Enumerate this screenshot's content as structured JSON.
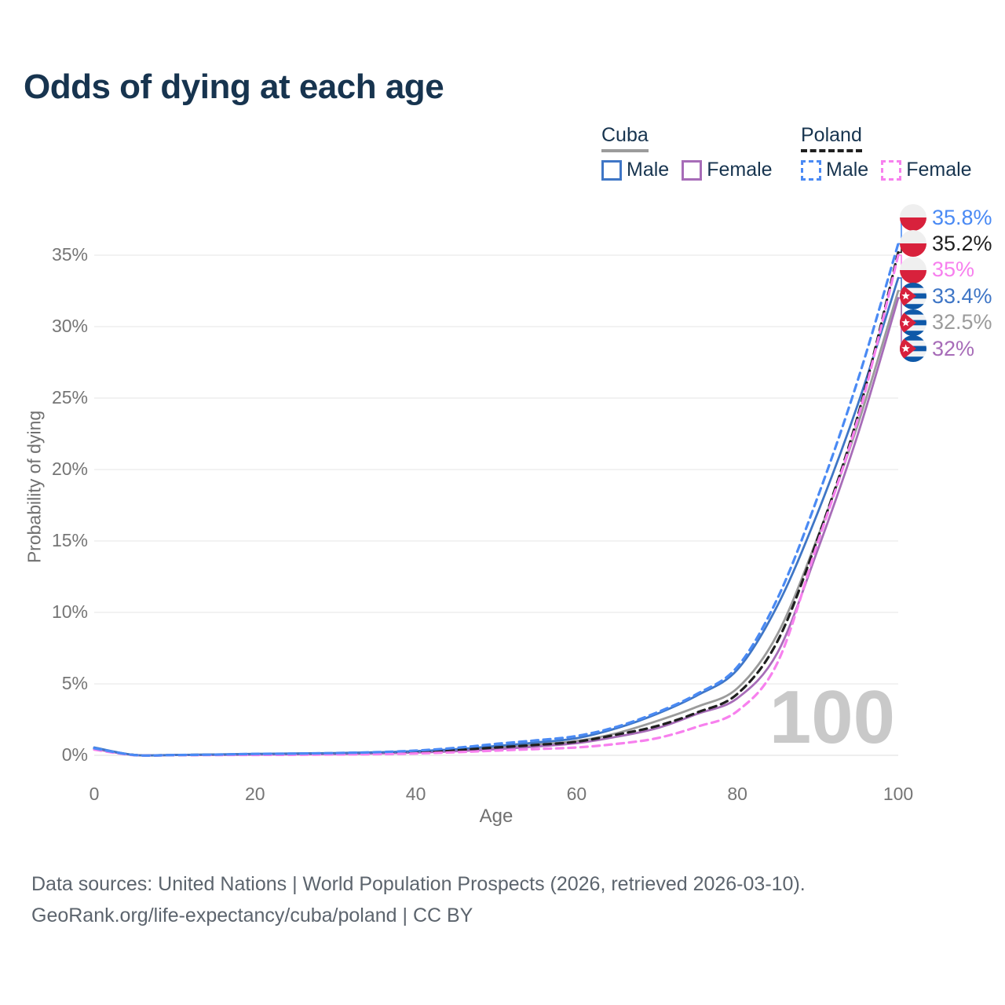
{
  "title": "Odds of dying at each age",
  "watermark": "100",
  "legend": {
    "groups": [
      {
        "country": "Cuba",
        "style": "solid",
        "underline_color": "#9b9b9b",
        "items": [
          {
            "label": "Male",
            "color": "#3f76c6",
            "dashed": false
          },
          {
            "label": "Female",
            "color": "#a76cb8",
            "dashed": false
          }
        ]
      },
      {
        "country": "Poland",
        "style": "dashed",
        "underline_color": "#1f1f1f",
        "items": [
          {
            "label": "Male",
            "color": "#4a8af4",
            "dashed": true
          },
          {
            "label": "Female",
            "color": "#f780ee",
            "dashed": true
          }
        ]
      }
    ]
  },
  "axes": {
    "y_title": "Probability of dying",
    "x_title": "Age",
    "y_ticks": [
      "0%",
      "5%",
      "10%",
      "15%",
      "20%",
      "25%",
      "30%",
      "35%"
    ],
    "x_ticks": [
      "0",
      "20",
      "40",
      "60",
      "80",
      "100"
    ]
  },
  "chart_data": {
    "type": "line",
    "title": "Odds of dying at each age",
    "xlabel": "Age",
    "ylabel": "Probability of dying",
    "xlim": [
      0,
      100
    ],
    "ylim": [
      0,
      38
    ],
    "grid": "horizontal",
    "legend_position": "top-right",
    "x": [
      0,
      5,
      10,
      15,
      20,
      25,
      30,
      35,
      40,
      45,
      50,
      55,
      60,
      65,
      70,
      75,
      80,
      85,
      90,
      95,
      100
    ],
    "series": [
      {
        "name": "Poland Male",
        "country": "Poland",
        "sex": "Male",
        "color": "#4a8af4",
        "dashed": true,
        "values": [
          0.5,
          0.02,
          0.02,
          0.05,
          0.1,
          0.12,
          0.16,
          0.22,
          0.33,
          0.52,
          0.8,
          1.05,
          1.35,
          2.0,
          3.0,
          4.3,
          6.2,
          11.0,
          18.1,
          26.3,
          35.8
        ],
        "end_label": "35.8%",
        "flag": "poland"
      },
      {
        "name": "Poland Both sexes",
        "country": "Poland",
        "sex": "Both",
        "color": "#1f1f1f",
        "dashed": true,
        "values": [
          0.45,
          0.02,
          0.02,
          0.04,
          0.07,
          0.08,
          0.11,
          0.15,
          0.22,
          0.36,
          0.55,
          0.73,
          0.95,
          1.45,
          2.05,
          3.0,
          4.3,
          8.0,
          15.2,
          23.8,
          35.2
        ],
        "end_label": "35.2%",
        "flag": "poland"
      },
      {
        "name": "Poland Female",
        "country": "Poland",
        "sex": "Female",
        "color": "#f780ee",
        "dashed": true,
        "values": [
          0.4,
          0.01,
          0.01,
          0.02,
          0.03,
          0.04,
          0.06,
          0.08,
          0.13,
          0.22,
          0.33,
          0.44,
          0.55,
          0.8,
          1.2,
          2.0,
          3.1,
          6.5,
          14.9,
          23.6,
          35.0
        ],
        "end_label": "35%",
        "flag": "poland"
      },
      {
        "name": "Cuba Male",
        "country": "Cuba",
        "sex": "Male",
        "color": "#3f76c6",
        "dashed": false,
        "values": [
          0.55,
          0.03,
          0.03,
          0.06,
          0.1,
          0.13,
          0.16,
          0.21,
          0.29,
          0.43,
          0.65,
          0.9,
          1.2,
          1.9,
          2.9,
          4.2,
          6.0,
          10.5,
          17.0,
          24.6,
          33.4
        ],
        "end_label": "33.4%",
        "flag": "cuba"
      },
      {
        "name": "Cuba Both sexes",
        "country": "Cuba",
        "sex": "Both",
        "color": "#9b9b9b",
        "dashed": false,
        "values": [
          0.5,
          0.02,
          0.02,
          0.05,
          0.08,
          0.1,
          0.13,
          0.17,
          0.24,
          0.36,
          0.54,
          0.76,
          1.0,
          1.55,
          2.4,
          3.4,
          4.7,
          8.5,
          15.3,
          23.2,
          32.5
        ],
        "end_label": "32.5%",
        "flag": "cuba"
      },
      {
        "name": "Cuba Female",
        "country": "Cuba",
        "sex": "Female",
        "color": "#a76cb8",
        "dashed": false,
        "values": [
          0.45,
          0.02,
          0.02,
          0.03,
          0.05,
          0.07,
          0.09,
          0.13,
          0.19,
          0.29,
          0.43,
          0.62,
          0.85,
          1.3,
          1.9,
          2.9,
          4.0,
          7.2,
          14.4,
          22.5,
          32.0
        ],
        "end_label": "32%",
        "flag": "cuba"
      }
    ],
    "flag_colors": {
      "poland_white": "#efefef",
      "poland_red": "#d8213c",
      "cuba_blue": "#0e58a8",
      "cuba_white": "#f0f2f4",
      "cuba_red": "#d8203c"
    },
    "gridline_color": "#ebebeb"
  },
  "footer": {
    "line1": "Data sources: United Nations | World Population Prospects (2026, retrieved 2026-03-10).",
    "line2": "GeoRank.org/life-expectancy/cuba/poland | CC BY"
  }
}
